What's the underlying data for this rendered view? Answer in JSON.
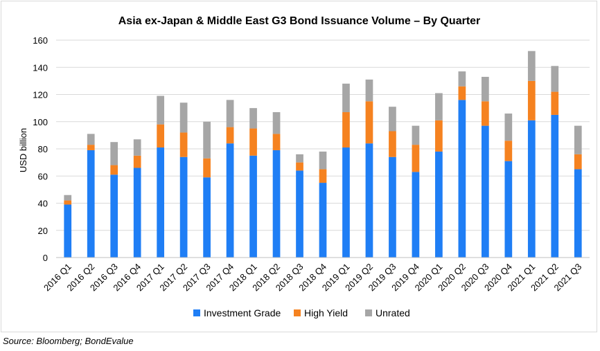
{
  "chart_data": {
    "type": "bar",
    "stacked": true,
    "title": "Asia ex-Japan & Middle East G3 Bond Issuance Volume – By Quarter",
    "xlabel": "",
    "ylabel": "USD billion",
    "ylim": [
      0,
      160
    ],
    "yticks": [
      0,
      20,
      40,
      60,
      80,
      100,
      120,
      140,
      160
    ],
    "grid": true,
    "legend_position": "bottom",
    "categories": [
      "2016 Q1",
      "2016 Q2",
      "2016 Q3",
      "2016 Q4",
      "2017 Q1",
      "2017 Q2",
      "2017 Q3",
      "2017 Q4",
      "2018 Q1",
      "2018 Q2",
      "2018 Q3",
      "2018 Q4",
      "2019 Q1",
      "2019 Q2",
      "2019 Q3",
      "2019 Q4",
      "2020 Q1",
      "2020 Q2",
      "2020 Q3",
      "2020 Q4",
      "2021 Q1",
      "2021 Q2",
      "2021 Q3"
    ],
    "series": [
      {
        "name": "Investment Grade",
        "color": "#1f7ef5",
        "values": [
          39,
          79,
          61,
          66,
          81,
          74,
          59,
          84,
          75,
          79,
          64,
          55,
          81,
          84,
          74,
          63,
          78,
          116,
          97,
          71,
          101,
          105,
          65
        ]
      },
      {
        "name": "High Yield",
        "color": "#f58220",
        "values": [
          3,
          4,
          7,
          9,
          17,
          18,
          14,
          12,
          20,
          12,
          6,
          10,
          26,
          31,
          19,
          20,
          23,
          10,
          18,
          15,
          29,
          17,
          11
        ]
      },
      {
        "name": "Unrated",
        "color": "#a6a6a6",
        "values": [
          4,
          8,
          17,
          12,
          21,
          22,
          27,
          20,
          15,
          16,
          6,
          13,
          21,
          16,
          18,
          14,
          20,
          11,
          18,
          20,
          22,
          19,
          21
        ]
      }
    ]
  },
  "source_note": "Source: Bloomberg; BondEvalue"
}
